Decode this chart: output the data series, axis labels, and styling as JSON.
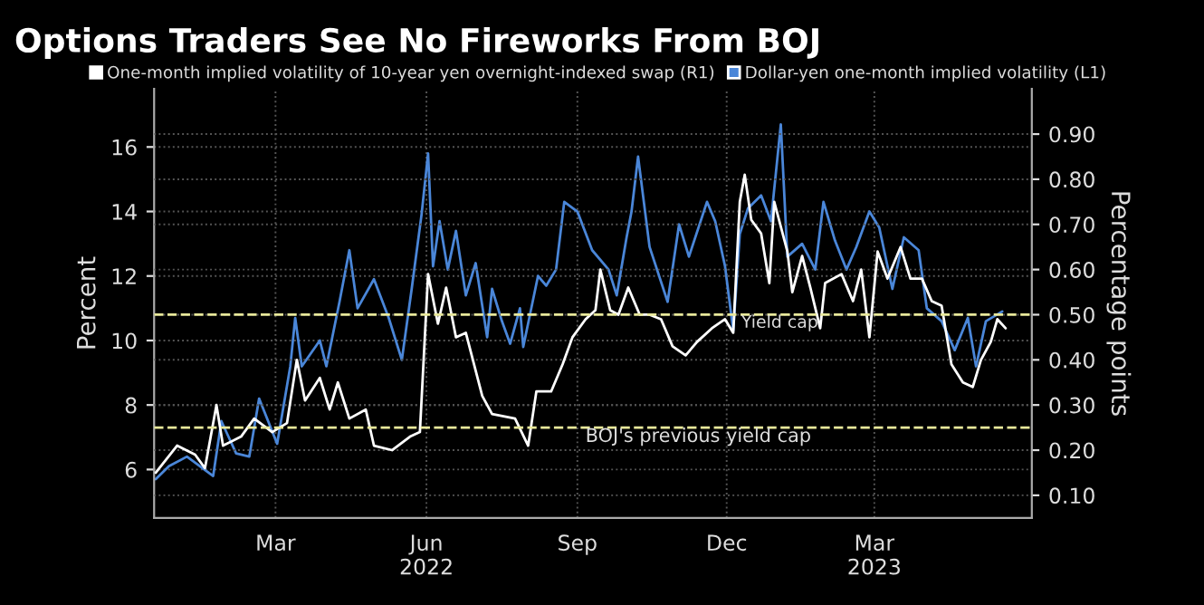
{
  "chart_data": {
    "type": "line",
    "title": "Options Traders See No Fireworks From BOJ",
    "ylabel": "Percent",
    "y2label": "Percentage points",
    "xlim": [
      "2021-12-17",
      "2023-06-05"
    ],
    "xticks": [
      {
        "value": "2022-03-01",
        "label": "Mar"
      },
      {
        "value": "2022-06-01",
        "label": "Jun\n2022"
      },
      {
        "value": "2022-09-01",
        "label": "Sep"
      },
      {
        "value": "2022-12-01",
        "label": "Dec"
      },
      {
        "value": "2023-03-01",
        "label": "Mar\n2023"
      }
    ],
    "ylim": [
      4.5,
      17.8
    ],
    "yticks": [
      6,
      8,
      10,
      12,
      14,
      16
    ],
    "y2lim": [
      0.05,
      1.0
    ],
    "y2ticks": [
      {
        "value": 0.1,
        "label": "0.10"
      },
      {
        "value": 0.2,
        "label": "0.20"
      },
      {
        "value": 0.3,
        "label": "0.30"
      },
      {
        "value": 0.4,
        "label": "0.40"
      },
      {
        "value": 0.5,
        "label": "0.50"
      },
      {
        "value": 0.6,
        "label": "0.60"
      },
      {
        "value": 0.7,
        "label": "0.70"
      },
      {
        "value": 0.8,
        "label": "0.80"
      },
      {
        "value": 0.9,
        "label": "0.90"
      }
    ],
    "grid": true,
    "legend": "top",
    "marker": "none",
    "line_style": "solid",
    "ref_lines": [
      {
        "axis": "y2",
        "value": 0.25,
        "label": "BOJ's previous yield cap",
        "color": "#e8e89a",
        "line_style": "dashed"
      },
      {
        "axis": "y2",
        "value": 0.5,
        "label": "Yield cap",
        "color": "#e8e89a",
        "line_style": "dashed"
      }
    ],
    "series": [
      {
        "name": "One-month implied volatility of 10-year yen overnight-indexed swap (R1)",
        "color": "#ffffff",
        "axis": "y2",
        "x": [
          "2021-12-18",
          "2021-12-31",
          "2022-01-11",
          "2022-01-17",
          "2022-01-24",
          "2022-01-28",
          "2022-02-08",
          "2022-02-16",
          "2022-02-27",
          "2022-03-08",
          "2022-03-14",
          "2022-03-19",
          "2022-03-28",
          "2022-04-03",
          "2022-04-08",
          "2022-04-15",
          "2022-04-25",
          "2022-04-30",
          "2022-05-11",
          "2022-05-22",
          "2022-05-28",
          "2022-06-02",
          "2022-06-08",
          "2022-06-13",
          "2022-06-19",
          "2022-06-25",
          "2022-07-05",
          "2022-07-11",
          "2022-07-25",
          "2022-08-02",
          "2022-08-07",
          "2022-08-16",
          "2022-08-23",
          "2022-08-29",
          "2022-09-06",
          "2022-09-12",
          "2022-09-15",
          "2022-09-21",
          "2022-09-26",
          "2022-10-02",
          "2022-10-09",
          "2022-10-15",
          "2022-10-22",
          "2022-10-29",
          "2022-11-06",
          "2022-11-13",
          "2022-11-22",
          "2022-11-30",
          "2022-12-05",
          "2022-12-09",
          "2022-12-12",
          "2022-12-16",
          "2022-12-22",
          "2022-12-27",
          "2022-12-30",
          "2023-01-07",
          "2023-01-10",
          "2023-01-16",
          "2023-01-21",
          "2023-01-27",
          "2023-01-30",
          "2023-02-09",
          "2023-02-16",
          "2023-02-21",
          "2023-02-26",
          "2023-03-03",
          "2023-03-09",
          "2023-03-17",
          "2023-03-23",
          "2023-03-30",
          "2023-04-05",
          "2023-04-11",
          "2023-04-17",
          "2023-04-24",
          "2023-04-30",
          "2023-05-05",
          "2023-05-11",
          "2023-05-15",
          "2023-05-20"
        ],
        "values": [
          0.15,
          0.21,
          0.19,
          0.16,
          0.3,
          0.21,
          0.23,
          0.27,
          0.24,
          0.26,
          0.4,
          0.31,
          0.36,
          0.29,
          0.35,
          0.27,
          0.29,
          0.21,
          0.2,
          0.23,
          0.24,
          0.59,
          0.48,
          0.56,
          0.45,
          0.46,
          0.32,
          0.28,
          0.27,
          0.21,
          0.33,
          0.33,
          0.39,
          0.45,
          0.49,
          0.51,
          0.6,
          0.51,
          0.5,
          0.56,
          0.5,
          0.5,
          0.49,
          0.43,
          0.41,
          0.44,
          0.47,
          0.49,
          0.46,
          0.75,
          0.81,
          0.71,
          0.68,
          0.57,
          0.75,
          0.64,
          0.55,
          0.63,
          0.56,
          0.47,
          0.57,
          0.59,
          0.53,
          0.6,
          0.45,
          0.64,
          0.58,
          0.65,
          0.58,
          0.58,
          0.53,
          0.52,
          0.39,
          0.35,
          0.34,
          0.4,
          0.44,
          0.49,
          0.47
        ]
      },
      {
        "name": "Dollar-yen one-month implied volatility (L1)",
        "color": "#4a86d8",
        "x": [
          "2021-12-18",
          "2021-12-26",
          "2022-01-06",
          "2022-01-22",
          "2022-01-27",
          "2022-02-05",
          "2022-02-13",
          "2022-02-19",
          "2022-03-02",
          "2022-03-10",
          "2022-03-13",
          "2022-03-17",
          "2022-03-28",
          "2022-04-01",
          "2022-04-09",
          "2022-04-15",
          "2022-04-20",
          "2022-04-30",
          "2022-05-09",
          "2022-05-17",
          "2022-05-23",
          "2022-05-29",
          "2022-06-02",
          "2022-06-05",
          "2022-06-09",
          "2022-06-14",
          "2022-06-19",
          "2022-06-25",
          "2022-07-01",
          "2022-07-08",
          "2022-07-11",
          "2022-07-17",
          "2022-07-22",
          "2022-07-28",
          "2022-07-30",
          "2022-08-08",
          "2022-08-13",
          "2022-08-19",
          "2022-08-24",
          "2022-09-01",
          "2022-09-10",
          "2022-09-20",
          "2022-09-25",
          "2022-10-01",
          "2022-10-04",
          "2022-10-08",
          "2022-10-15",
          "2022-10-26",
          "2022-11-02",
          "2022-11-08",
          "2022-11-19",
          "2022-11-24",
          "2022-11-30",
          "2022-12-05",
          "2022-12-09",
          "2022-12-14",
          "2022-12-22",
          "2022-12-28",
          "2023-01-03",
          "2023-01-07",
          "2023-01-16",
          "2023-01-24",
          "2023-01-29",
          "2023-02-05",
          "2023-02-12",
          "2023-02-18",
          "2023-02-26",
          "2023-03-04",
          "2023-03-12",
          "2023-03-19",
          "2023-03-28",
          "2023-04-02",
          "2023-04-11",
          "2023-04-19",
          "2023-04-27",
          "2023-05-02",
          "2023-05-08",
          "2023-05-18"
        ],
        "values": [
          5.7,
          6.1,
          6.4,
          5.8,
          7.5,
          6.5,
          6.4,
          8.2,
          6.8,
          9.2,
          10.7,
          9.2,
          10.0,
          9.2,
          11.2,
          12.8,
          11.0,
          11.9,
          10.7,
          9.4,
          11.6,
          13.9,
          15.8,
          12.3,
          13.7,
          12.2,
          13.4,
          11.4,
          12.4,
          10.1,
          11.6,
          10.6,
          9.9,
          11.0,
          9.8,
          12.0,
          11.7,
          12.2,
          14.3,
          14.0,
          12.8,
          12.2,
          11.4,
          13.2,
          14.0,
          15.7,
          12.9,
          11.2,
          13.6,
          12.6,
          14.3,
          13.7,
          12.3,
          10.3,
          13.3,
          14.1,
          14.5,
          13.7,
          16.7,
          12.6,
          13.0,
          12.2,
          14.3,
          13.1,
          12.2,
          12.9,
          14.0,
          13.5,
          11.6,
          13.2,
          12.8,
          11.0,
          10.6,
          9.7,
          10.7,
          9.2,
          10.6,
          10.9
        ]
      }
    ]
  }
}
